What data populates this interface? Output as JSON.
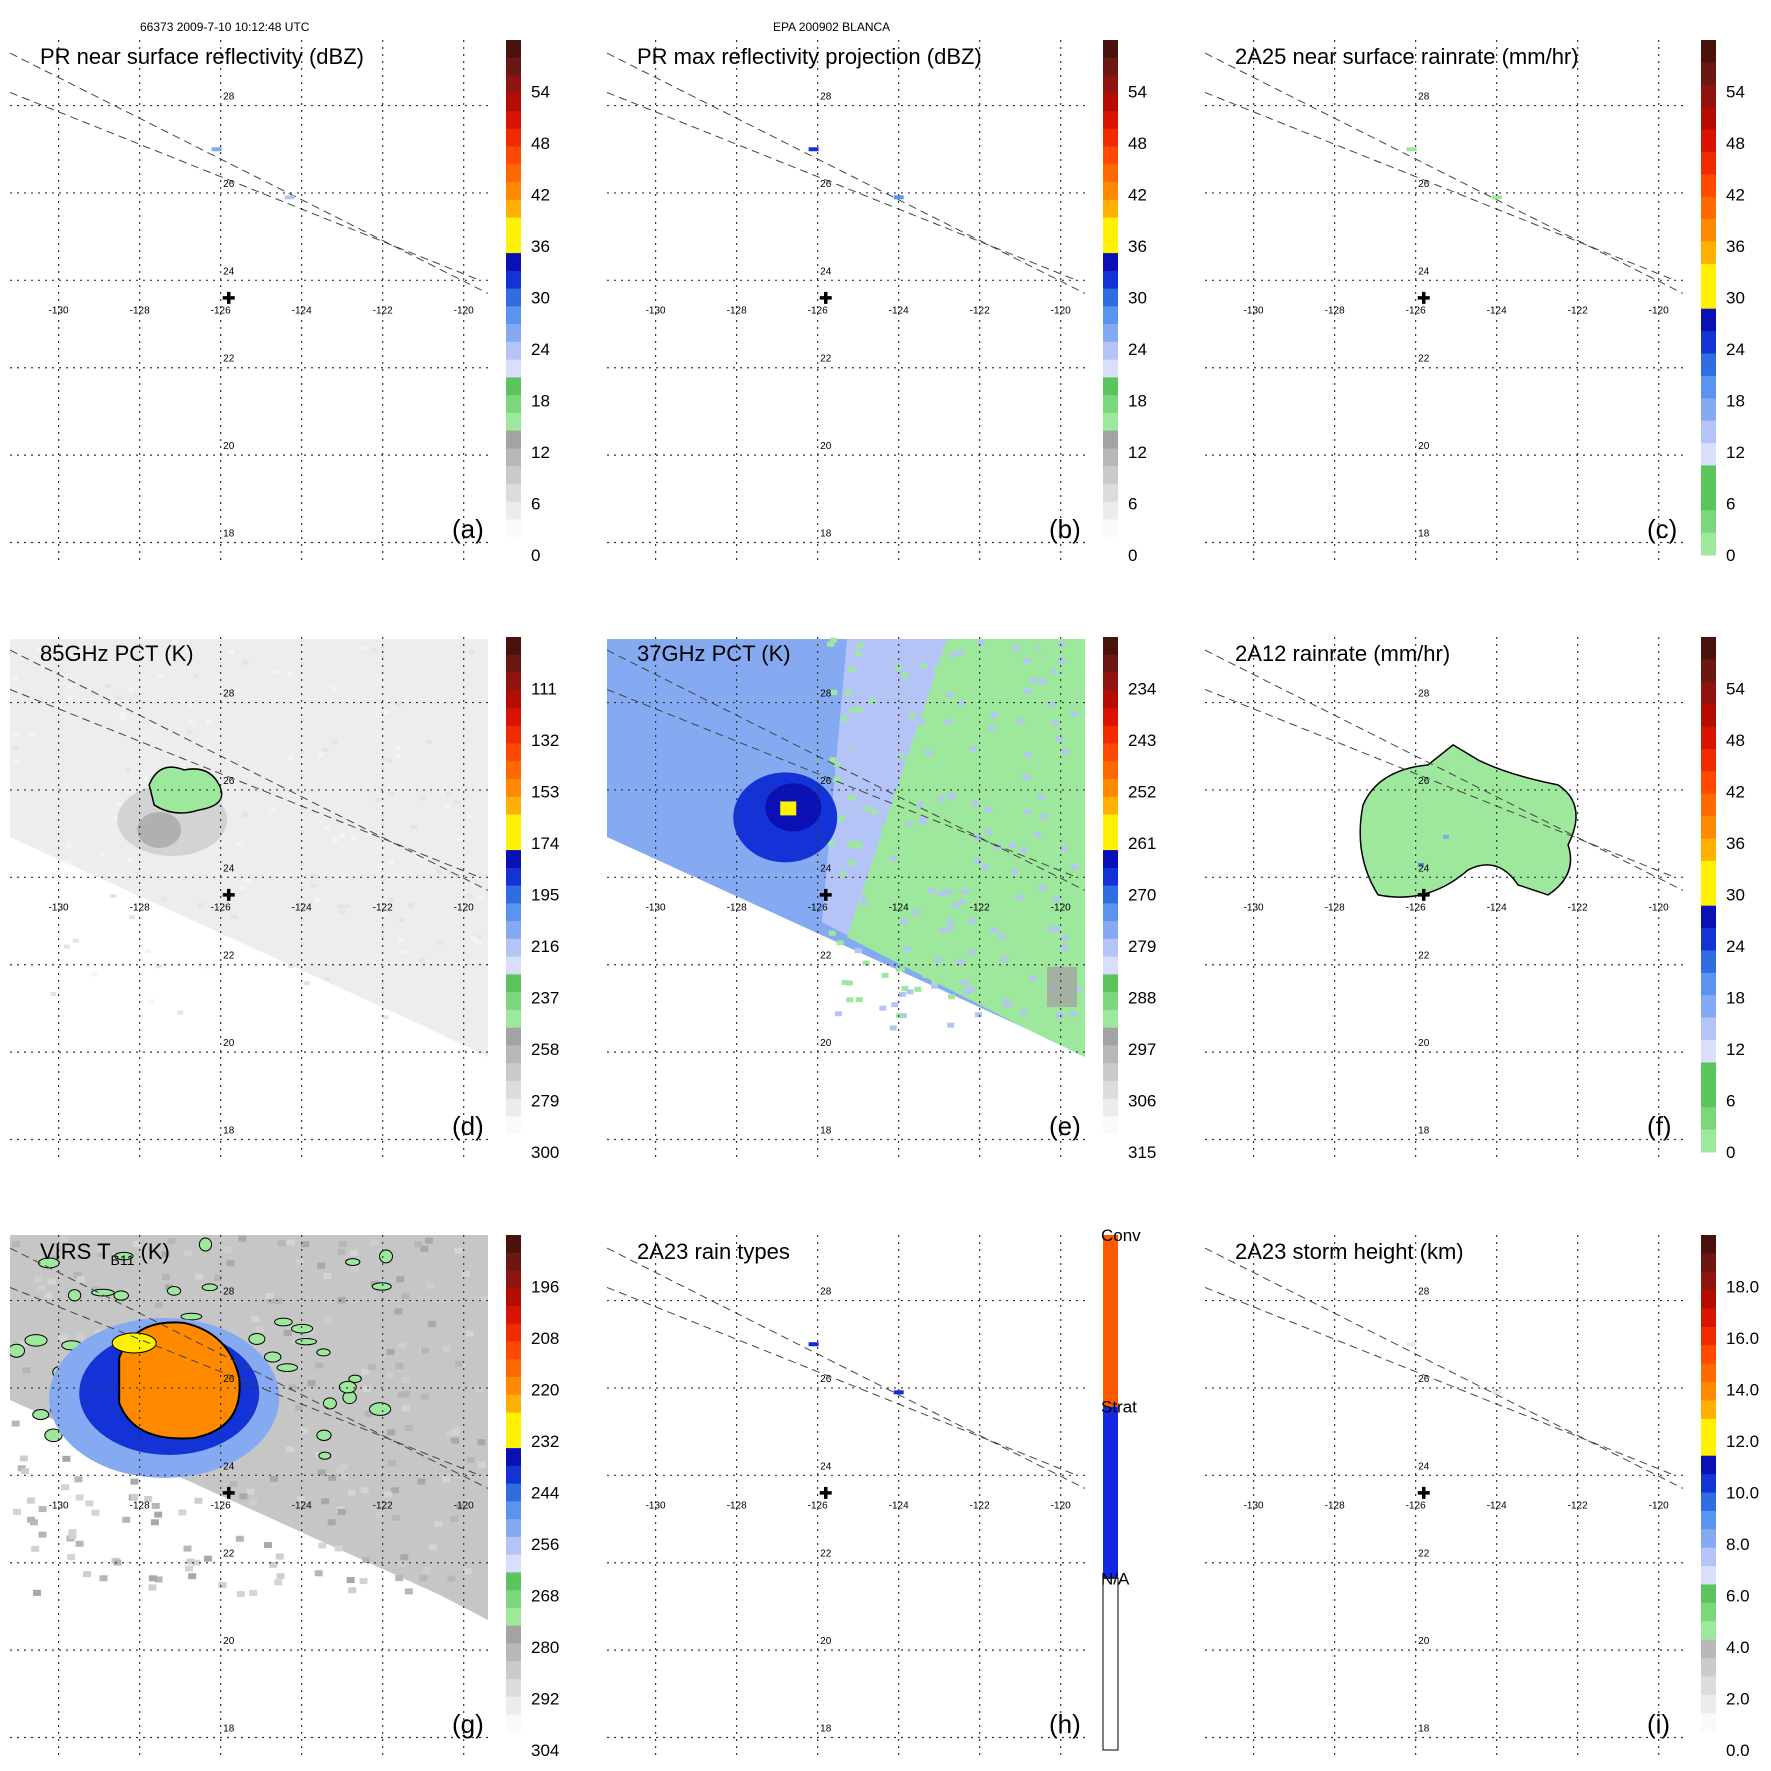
{
  "header": {
    "orbit_time": "66373 2009-7-10 10:12:48 UTC",
    "storm": "EPA 200902 BLANCA"
  },
  "colors": {
    "gray": [
      "#fafafa",
      "#ececec",
      "#dcdcdc",
      "#cbcbcb",
      "#b8b8b8",
      "#a3a3a3"
    ],
    "green": [
      "#9ee89e",
      "#7cd67c",
      "#5cc45c"
    ],
    "blue": [
      "#d9defb",
      "#b4c4f6",
      "#86aaf2",
      "#5b94ee",
      "#2f6de0",
      "#1433d6",
      "#0a10b4"
    ],
    "yellow": "#fff200",
    "orange": [
      "#ffb000",
      "#ff8a00",
      "#ff6a00"
    ],
    "red": [
      "#ff4a00",
      "#f22a00",
      "#d81400",
      "#b50c00",
      "#8f1410",
      "#6b1812",
      "#4a120c"
    ],
    "rain_conv": "#ff5a00",
    "rain_strat": "#1428e0",
    "rain_na": "#ffffff",
    "contour": "#000000"
  },
  "chart_data": [
    {
      "id": "a",
      "type": "heatmap",
      "title": "PR near surface reflectivity (dBZ)",
      "label": "(a)",
      "cbar_type": "dbz",
      "colorbar_ticks": [
        "54",
        "48",
        "42",
        "36",
        "30",
        "24",
        "18",
        "12",
        "6",
        "0"
      ],
      "field": "pr_swath",
      "lon_ticks": [
        -130,
        -128,
        -126,
        -124,
        -122,
        -120
      ],
      "lat_ticks": [
        28,
        26,
        24,
        22,
        20,
        18
      ],
      "center": {
        "lon": -125.8,
        "lat": 23.6
      },
      "features": [
        {
          "lon": -126.1,
          "lat": 27.0,
          "color": "#86aaf2"
        },
        {
          "lon": -124.3,
          "lat": 25.9,
          "color": "#b4c4f6"
        }
      ]
    },
    {
      "id": "b",
      "type": "heatmap",
      "title": "PR max reflectivity projection (dBZ)",
      "label": "(b)",
      "cbar_type": "dbz",
      "colorbar_ticks": [
        "54",
        "48",
        "42",
        "36",
        "30",
        "24",
        "18",
        "12",
        "6",
        "0"
      ],
      "field": "pr_swath",
      "lon_ticks": [
        -130,
        -128,
        -126,
        -124,
        -122,
        -120
      ],
      "lat_ticks": [
        28,
        26,
        24,
        22,
        20,
        18
      ],
      "center": {
        "lon": -125.8,
        "lat": 23.6
      },
      "features": [
        {
          "lon": -126.1,
          "lat": 27.0,
          "color": "#1433d6"
        },
        {
          "lon": -124.0,
          "lat": 25.9,
          "color": "#5b94ee"
        }
      ]
    },
    {
      "id": "c",
      "type": "heatmap",
      "title": "2A25 near surface rainrate (mm/hr)",
      "label": "(c)",
      "cbar_type": "rain",
      "colorbar_ticks": [
        "54",
        "48",
        "42",
        "36",
        "30",
        "24",
        "18",
        "12",
        "6",
        "0"
      ],
      "field": "pr_swath",
      "lon_ticks": [
        -130,
        -128,
        -126,
        -124,
        -122,
        -120
      ],
      "lat_ticks": [
        28,
        26,
        24,
        22,
        20,
        18
      ],
      "center": {
        "lon": -125.8,
        "lat": 23.6
      },
      "features": [
        {
          "lon": -126.1,
          "lat": 27.0,
          "color": "#9ee89e"
        },
        {
          "lon": -124.0,
          "lat": 25.9,
          "color": "#9ee89e"
        }
      ]
    },
    {
      "id": "d",
      "type": "heatmap",
      "title": "85GHz PCT (K)",
      "label": "(d)",
      "cbar_type": "pct",
      "colorbar_ticks": [
        "111",
        "132",
        "153",
        "174",
        "195",
        "216",
        "237",
        "258",
        "279",
        "300"
      ],
      "field": "tmi85",
      "lon_ticks": [
        -130,
        -128,
        -126,
        -124,
        -122,
        -120
      ],
      "lat_ticks": [
        28,
        26,
        24,
        22,
        20,
        18
      ],
      "center": {
        "lon": -125.8,
        "lat": 23.6
      }
    },
    {
      "id": "e",
      "type": "heatmap",
      "title": "37GHz PCT (K)",
      "label": "(e)",
      "cbar_type": "pct",
      "colorbar_ticks": [
        "234",
        "243",
        "252",
        "261",
        "270",
        "279",
        "288",
        "297",
        "306",
        "315"
      ],
      "field": "tmi37",
      "lon_ticks": [
        -130,
        -128,
        -126,
        -124,
        -122,
        -120
      ],
      "lat_ticks": [
        28,
        26,
        24,
        22,
        20,
        18
      ],
      "center": {
        "lon": -125.8,
        "lat": 23.6
      }
    },
    {
      "id": "f",
      "type": "heatmap",
      "title": "2A12 rainrate (mm/hr)",
      "label": "(f)",
      "cbar_type": "rain",
      "colorbar_ticks": [
        "54",
        "48",
        "42",
        "36",
        "30",
        "24",
        "18",
        "12",
        "6",
        "0"
      ],
      "field": "tmi_rain",
      "lon_ticks": [
        -130,
        -128,
        -126,
        -124,
        -122,
        -120
      ],
      "lat_ticks": [
        28,
        26,
        24,
        22,
        20,
        18
      ],
      "center": {
        "lon": -125.8,
        "lat": 23.6
      }
    },
    {
      "id": "g",
      "type": "heatmap",
      "title": "VIRS T",
      "title_sub": "B11",
      "title_suffix": " (K)",
      "label": "(g)",
      "cbar_type": "pct",
      "colorbar_ticks": [
        "196",
        "208",
        "220",
        "232",
        "244",
        "256",
        "268",
        "280",
        "292",
        "304"
      ],
      "field": "virs",
      "lon_ticks": [
        -130,
        -128,
        -126,
        -124,
        -122,
        -120
      ],
      "lat_ticks": [
        28,
        26,
        24,
        22,
        20,
        18
      ],
      "center": {
        "lon": -125.8,
        "lat": 23.6
      }
    },
    {
      "id": "h",
      "type": "heatmap",
      "title": "2A23 rain types",
      "label": "(h)",
      "cbar_type": "rtype",
      "colorbar_ticks": [
        "Conv",
        "Strat",
        "N/A"
      ],
      "field": "pr_swath",
      "lon_ticks": [
        -130,
        -128,
        -126,
        -124,
        -122,
        -120
      ],
      "lat_ticks": [
        28,
        26,
        24,
        22,
        20,
        18
      ],
      "center": {
        "lon": -125.8,
        "lat": 23.6
      },
      "features": [
        {
          "lon": -126.1,
          "lat": 27.0,
          "color": "#1428e0"
        },
        {
          "lon": -124.0,
          "lat": 25.9,
          "color": "#1428e0"
        }
      ]
    },
    {
      "id": "i",
      "type": "heatmap",
      "title": "2A23 storm height (km)",
      "label": "(i)",
      "cbar_type": "height",
      "colorbar_ticks": [
        "18.0",
        "16.0",
        "14.0",
        "12.0",
        "10.0",
        "8.0",
        "6.0",
        "4.0",
        "2.0",
        "0.0"
      ],
      "field": "pr_swath",
      "lon_ticks": [
        -130,
        -128,
        -126,
        -124,
        -122,
        -120
      ],
      "lat_ticks": [
        28,
        26,
        24,
        22,
        20,
        18
      ],
      "center": {
        "lon": -125.8,
        "lat": 23.6
      },
      "features": [
        {
          "lon": -126.1,
          "lat": 27.0,
          "color": "#e8e8e8"
        },
        {
          "lon": -124.0,
          "lat": 25.9,
          "color": "#e8e8e8"
        }
      ]
    }
  ]
}
